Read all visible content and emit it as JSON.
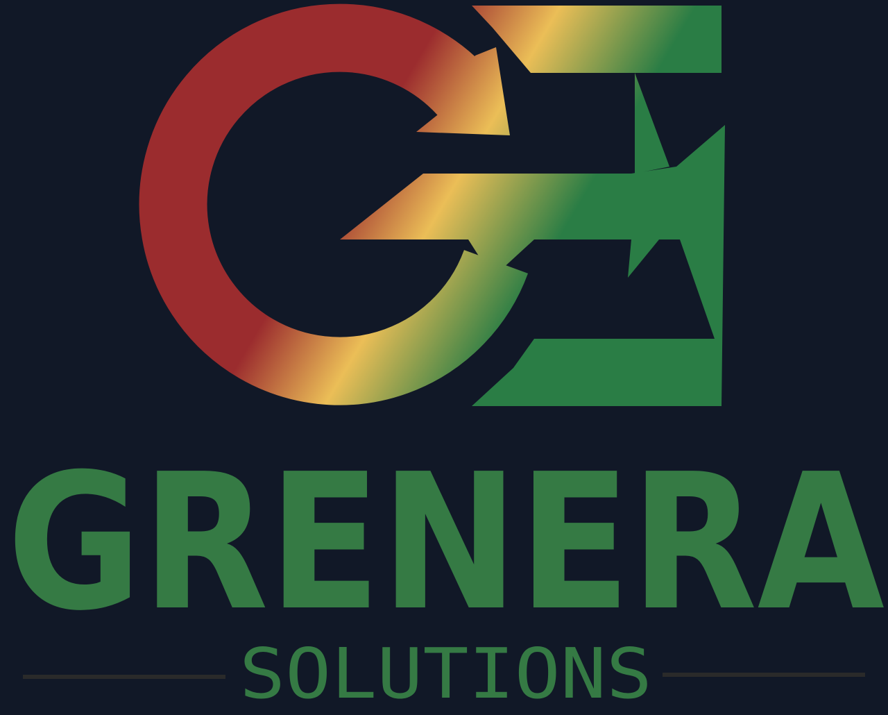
{
  "brand": {
    "name": "GRENERA",
    "tagline": "SOLUTIONS"
  }
}
